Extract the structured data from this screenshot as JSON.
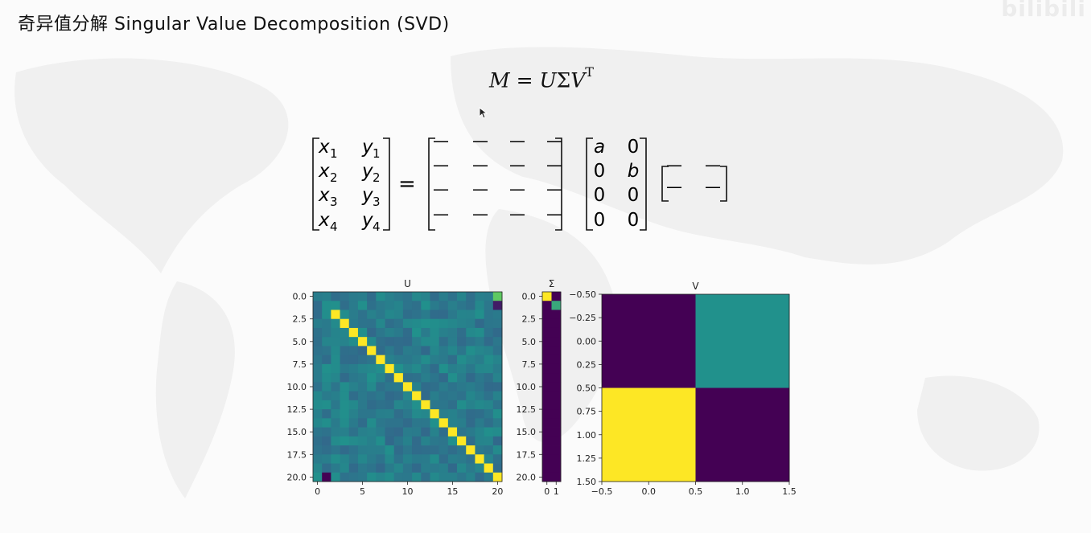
{
  "title": "奇异值分解 Singular Value Decomposition (SVD)",
  "watermark": "bilibili",
  "formula": {
    "lhs": "M",
    "eq": "=",
    "u": "U",
    "sigma": "Σ",
    "v": "V",
    "sup": "T"
  },
  "matrix_equation": {
    "lhs_rows": [
      [
        "x",
        "1",
        "y",
        "1"
      ],
      [
        "x",
        "2",
        "y",
        "2"
      ],
      [
        "x",
        "3",
        "y",
        "3"
      ],
      [
        "x",
        "4",
        "y",
        "4"
      ]
    ],
    "equals": "=",
    "u_rows": 4,
    "u_cols": 4,
    "sigma_rows": [
      [
        "a",
        "0"
      ],
      [
        "0",
        "b"
      ],
      [
        "0",
        "0"
      ],
      [
        "0",
        "0"
      ]
    ],
    "v_rows": 2,
    "v_cols": 2,
    "dash": "—"
  },
  "chart_data": [
    {
      "type": "heatmap",
      "title": "U",
      "xlim": [
        -0.5,
        20.5
      ],
      "ylim": [
        20.5,
        -0.5
      ],
      "xticks": [
        "0",
        "5",
        "10",
        "15",
        "20"
      ],
      "yticks": [
        "0.0",
        "2.5",
        "5.0",
        "7.5",
        "10.0",
        "12.5",
        "15.0",
        "17.5",
        "20.0"
      ],
      "rows": 21,
      "cols": 21,
      "description_values": "diagonal cells (from row 2) near 1.0 (yellow), off-diagonal values near 0 (teal)"
    },
    {
      "type": "heatmap",
      "title": "Σ",
      "rows": 21,
      "cols": 2,
      "xticks": [
        "0",
        "1"
      ],
      "yticks": [
        "0.0",
        "2.5",
        "5.0",
        "7.5",
        "10.0",
        "12.5",
        "15.0",
        "17.5",
        "20.0"
      ],
      "values_top": [
        [
          1.0,
          0.0
        ],
        [
          0.0,
          0.6
        ]
      ]
    },
    {
      "type": "heatmap",
      "title": "V",
      "rows": 2,
      "cols": 2,
      "values": [
        [
          0.0,
          0.5
        ],
        [
          1.0,
          0.0
        ]
      ],
      "xticks": [
        "−0.5",
        "0.0",
        "0.5",
        "1.0",
        "1.5"
      ],
      "yticks": [
        "−0.50",
        "−0.25",
        "0.00",
        "0.25",
        "0.50",
        "0.75",
        "1.00",
        "1.25",
        "1.50"
      ]
    }
  ],
  "colors": {
    "viridis_low": "#440154",
    "viridis_mid": "#21918c",
    "viridis_high": "#fde725"
  }
}
